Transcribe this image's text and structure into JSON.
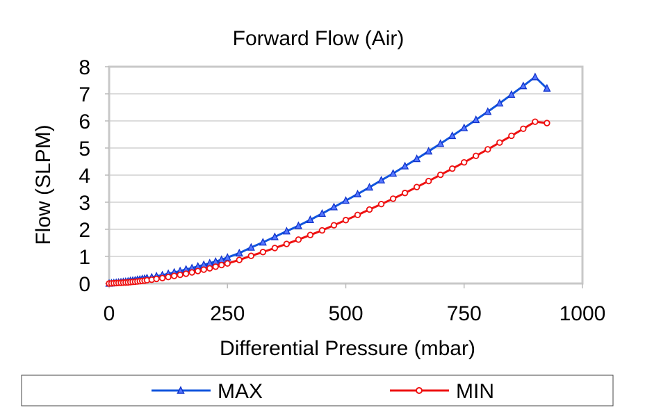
{
  "chart_data": {
    "type": "line",
    "title": "Forward Flow (Air)",
    "xlabel": "Differential Pressure (mbar)",
    "ylabel": "Flow (SLPM)",
    "xlim": [
      0,
      1000
    ],
    "ylim": [
      0,
      8
    ],
    "xticks": [
      "0",
      "250",
      "500",
      "750",
      "1000"
    ],
    "yticks": [
      "0",
      "1",
      "2",
      "3",
      "4",
      "5",
      "6",
      "7",
      "8"
    ],
    "grid": "horizontal",
    "legend_position": "bottom",
    "series": [
      {
        "name": "MAX",
        "color": "#1155dd",
        "marker": "triangle",
        "x": [
          0,
          5,
          10,
          15,
          20,
          25,
          30,
          35,
          40,
          45,
          50,
          55,
          60,
          65,
          70,
          75,
          80,
          90,
          100,
          112.5,
          125,
          137.5,
          150,
          162.5,
          175,
          187.5,
          200,
          212.5,
          225,
          237.5,
          250,
          275,
          300,
          325,
          350,
          375,
          400,
          425,
          450,
          475,
          500,
          525,
          550,
          575,
          600,
          625,
          650,
          675,
          700,
          725,
          750,
          775,
          800,
          825,
          850,
          875,
          900,
          925
        ],
        "values": [
          0,
          0.01,
          0.02,
          0.03,
          0.04,
          0.05,
          0.06,
          0.07,
          0.08,
          0.1,
          0.11,
          0.12,
          0.14,
          0.15,
          0.17,
          0.18,
          0.2,
          0.23,
          0.27,
          0.31,
          0.36,
          0.41,
          0.46,
          0.52,
          0.57,
          0.63,
          0.69,
          0.75,
          0.81,
          0.88,
          0.96,
          1.12,
          1.33,
          1.52,
          1.72,
          1.93,
          2.13,
          2.35,
          2.58,
          2.82,
          3.06,
          3.3,
          3.55,
          3.81,
          4.06,
          4.33,
          4.6,
          4.88,
          5.16,
          5.45,
          5.74,
          6.04,
          6.34,
          6.65,
          6.97,
          7.29,
          7.62,
          7.2
        ]
      },
      {
        "name": "MIN",
        "color": "#ee1111",
        "marker": "circle",
        "x": [
          0,
          5,
          10,
          15,
          20,
          25,
          30,
          35,
          40,
          45,
          50,
          55,
          60,
          65,
          70,
          75,
          80,
          90,
          100,
          112.5,
          125,
          137.5,
          150,
          162.5,
          175,
          187.5,
          200,
          212.5,
          225,
          237.5,
          250,
          275,
          300,
          325,
          350,
          375,
          400,
          425,
          450,
          475,
          500,
          525,
          550,
          575,
          600,
          625,
          650,
          675,
          700,
          725,
          750,
          775,
          800,
          825,
          850,
          875,
          900,
          925
        ],
        "values": [
          0,
          0.005,
          0.01,
          0.015,
          0.02,
          0.025,
          0.03,
          0.035,
          0.04,
          0.05,
          0.06,
          0.065,
          0.075,
          0.085,
          0.095,
          0.105,
          0.12,
          0.14,
          0.17,
          0.2,
          0.24,
          0.28,
          0.32,
          0.36,
          0.41,
          0.46,
          0.51,
          0.56,
          0.62,
          0.68,
          0.74,
          0.87,
          1.02,
          1.16,
          1.31,
          1.46,
          1.62,
          1.79,
          1.96,
          2.15,
          2.34,
          2.53,
          2.73,
          2.93,
          3.13,
          3.34,
          3.56,
          3.78,
          4.01,
          4.24,
          4.47,
          4.71,
          4.95,
          5.2,
          5.45,
          5.71,
          5.97,
          5.92
        ]
      }
    ]
  }
}
